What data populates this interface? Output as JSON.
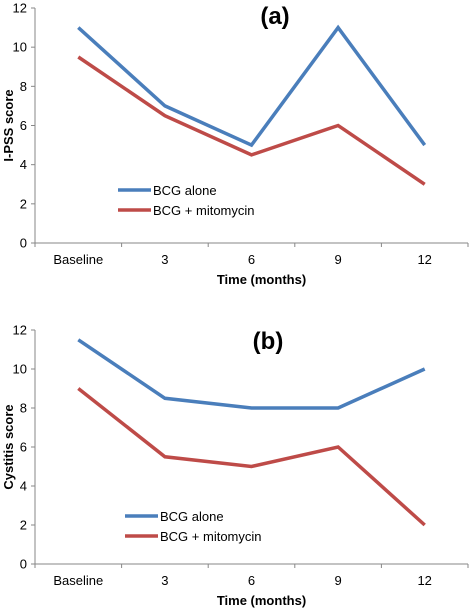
{
  "chart_data": [
    {
      "type": "line",
      "title": "(a)",
      "xlabel": "Time (months)",
      "ylabel": "I-PSS score",
      "categories": [
        "Baseline",
        "3",
        "6",
        "9",
        "12"
      ],
      "ylim": [
        0,
        12
      ],
      "yticks": [
        "0",
        "2",
        "4",
        "6",
        "8",
        "10",
        "12"
      ],
      "legend_position": "left",
      "grid": false,
      "series": [
        {
          "name": "BCG alone",
          "color": "#4a7ebb",
          "values": [
            11,
            7,
            5,
            11,
            5
          ]
        },
        {
          "name": "BCG + mitomycin",
          "color": "#be4b48",
          "values": [
            9.5,
            6.5,
            4.5,
            6,
            3
          ]
        }
      ]
    },
    {
      "type": "line",
      "title": "(b)",
      "xlabel": "Time (months)",
      "ylabel": "Cystitis score",
      "categories": [
        "Baseline",
        "3",
        "6",
        "9",
        "12"
      ],
      "ylim": [
        0,
        12
      ],
      "yticks": [
        "0",
        "2",
        "4",
        "6",
        "8",
        "10",
        "12"
      ],
      "legend_position": "left",
      "grid": false,
      "series": [
        {
          "name": "BCG alone",
          "color": "#4a7ebb",
          "values": [
            11.5,
            8.5,
            8,
            8,
            10
          ]
        },
        {
          "name": "BCG + mitomycin",
          "color": "#be4b48",
          "values": [
            9,
            5.5,
            5,
            6,
            2
          ]
        }
      ]
    }
  ]
}
